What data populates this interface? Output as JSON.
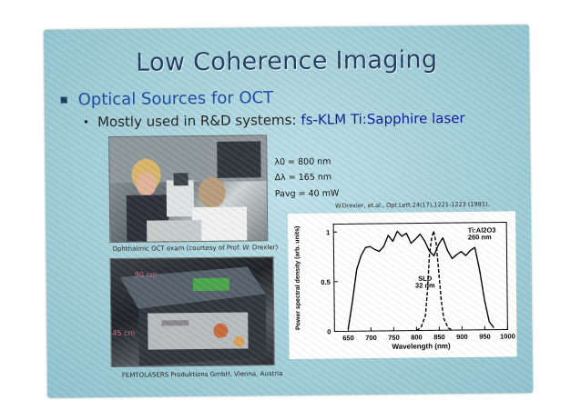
{
  "slide": {
    "title": "Low Coherence Imaging",
    "bullet1": "Optical Sources for OCT",
    "bullet2_prefix": "Mostly used in R&D systems:",
    "bullet2_highlight": "fs-KLM Ti:Sapphire laser"
  },
  "photos": {
    "caption_top": "Ophthalmic OCT exam  (courtesy of Prof. W. Drexler)",
    "caption_bottom": "FEMTOLASERS Produktions GmbH, Vienna, Austria",
    "dim_width": "90 cm",
    "dim_height": "45 cm"
  },
  "params": {
    "lambda": "λ0 = 800 nm",
    "delta": "Δλ = 165 nm",
    "power": "Pavg = 40 mW"
  },
  "reference": "W.Drexler, et.al., Opt.Lett.24(17),1221-1223 (1991).",
  "chart_data": {
    "type": "line",
    "xlabel": "Wavelength (nm)",
    "ylabel": "Power spectral density (arb. units)",
    "xlim": [
      620,
      1000
    ],
    "ylim": [
      0,
      1.08
    ],
    "x_ticks": [
      "650",
      "700",
      "750",
      "800",
      "850",
      "900",
      "950",
      "1000"
    ],
    "y_ticks": [
      "0",
      "0.5",
      "1"
    ],
    "series": [
      {
        "name": "Ti:Al2O3",
        "label_line1": "Ti:Al2O3",
        "label_line2": "260 nm",
        "style": "solid",
        "x": [
          650,
          660,
          670,
          680,
          690,
          700,
          710,
          720,
          730,
          740,
          750,
          760,
          770,
          780,
          790,
          800,
          810,
          820,
          830,
          840,
          850,
          860,
          870,
          880,
          890,
          900,
          910,
          920,
          930,
          940,
          950,
          960,
          970
        ],
        "y": [
          0.02,
          0.3,
          0.62,
          0.76,
          0.84,
          0.85,
          0.82,
          0.8,
          0.85,
          0.96,
          0.9,
          1.0,
          0.95,
          0.98,
          0.88,
          0.92,
          0.97,
          0.9,
          0.8,
          0.75,
          0.86,
          0.93,
          0.8,
          0.72,
          0.76,
          0.79,
          0.75,
          0.8,
          0.83,
          0.6,
          0.3,
          0.08,
          0.02
        ]
      },
      {
        "name": "SLD",
        "label_line1": "SLD",
        "label_line2": "32 nm",
        "style": "dashed",
        "x": [
          800,
          810,
          820,
          825,
          830,
          835,
          840,
          845,
          850,
          855,
          860,
          870,
          880
        ],
        "y": [
          0.0,
          0.03,
          0.15,
          0.4,
          0.75,
          0.92,
          1.0,
          0.88,
          0.6,
          0.3,
          0.12,
          0.02,
          0.0
        ]
      }
    ]
  }
}
